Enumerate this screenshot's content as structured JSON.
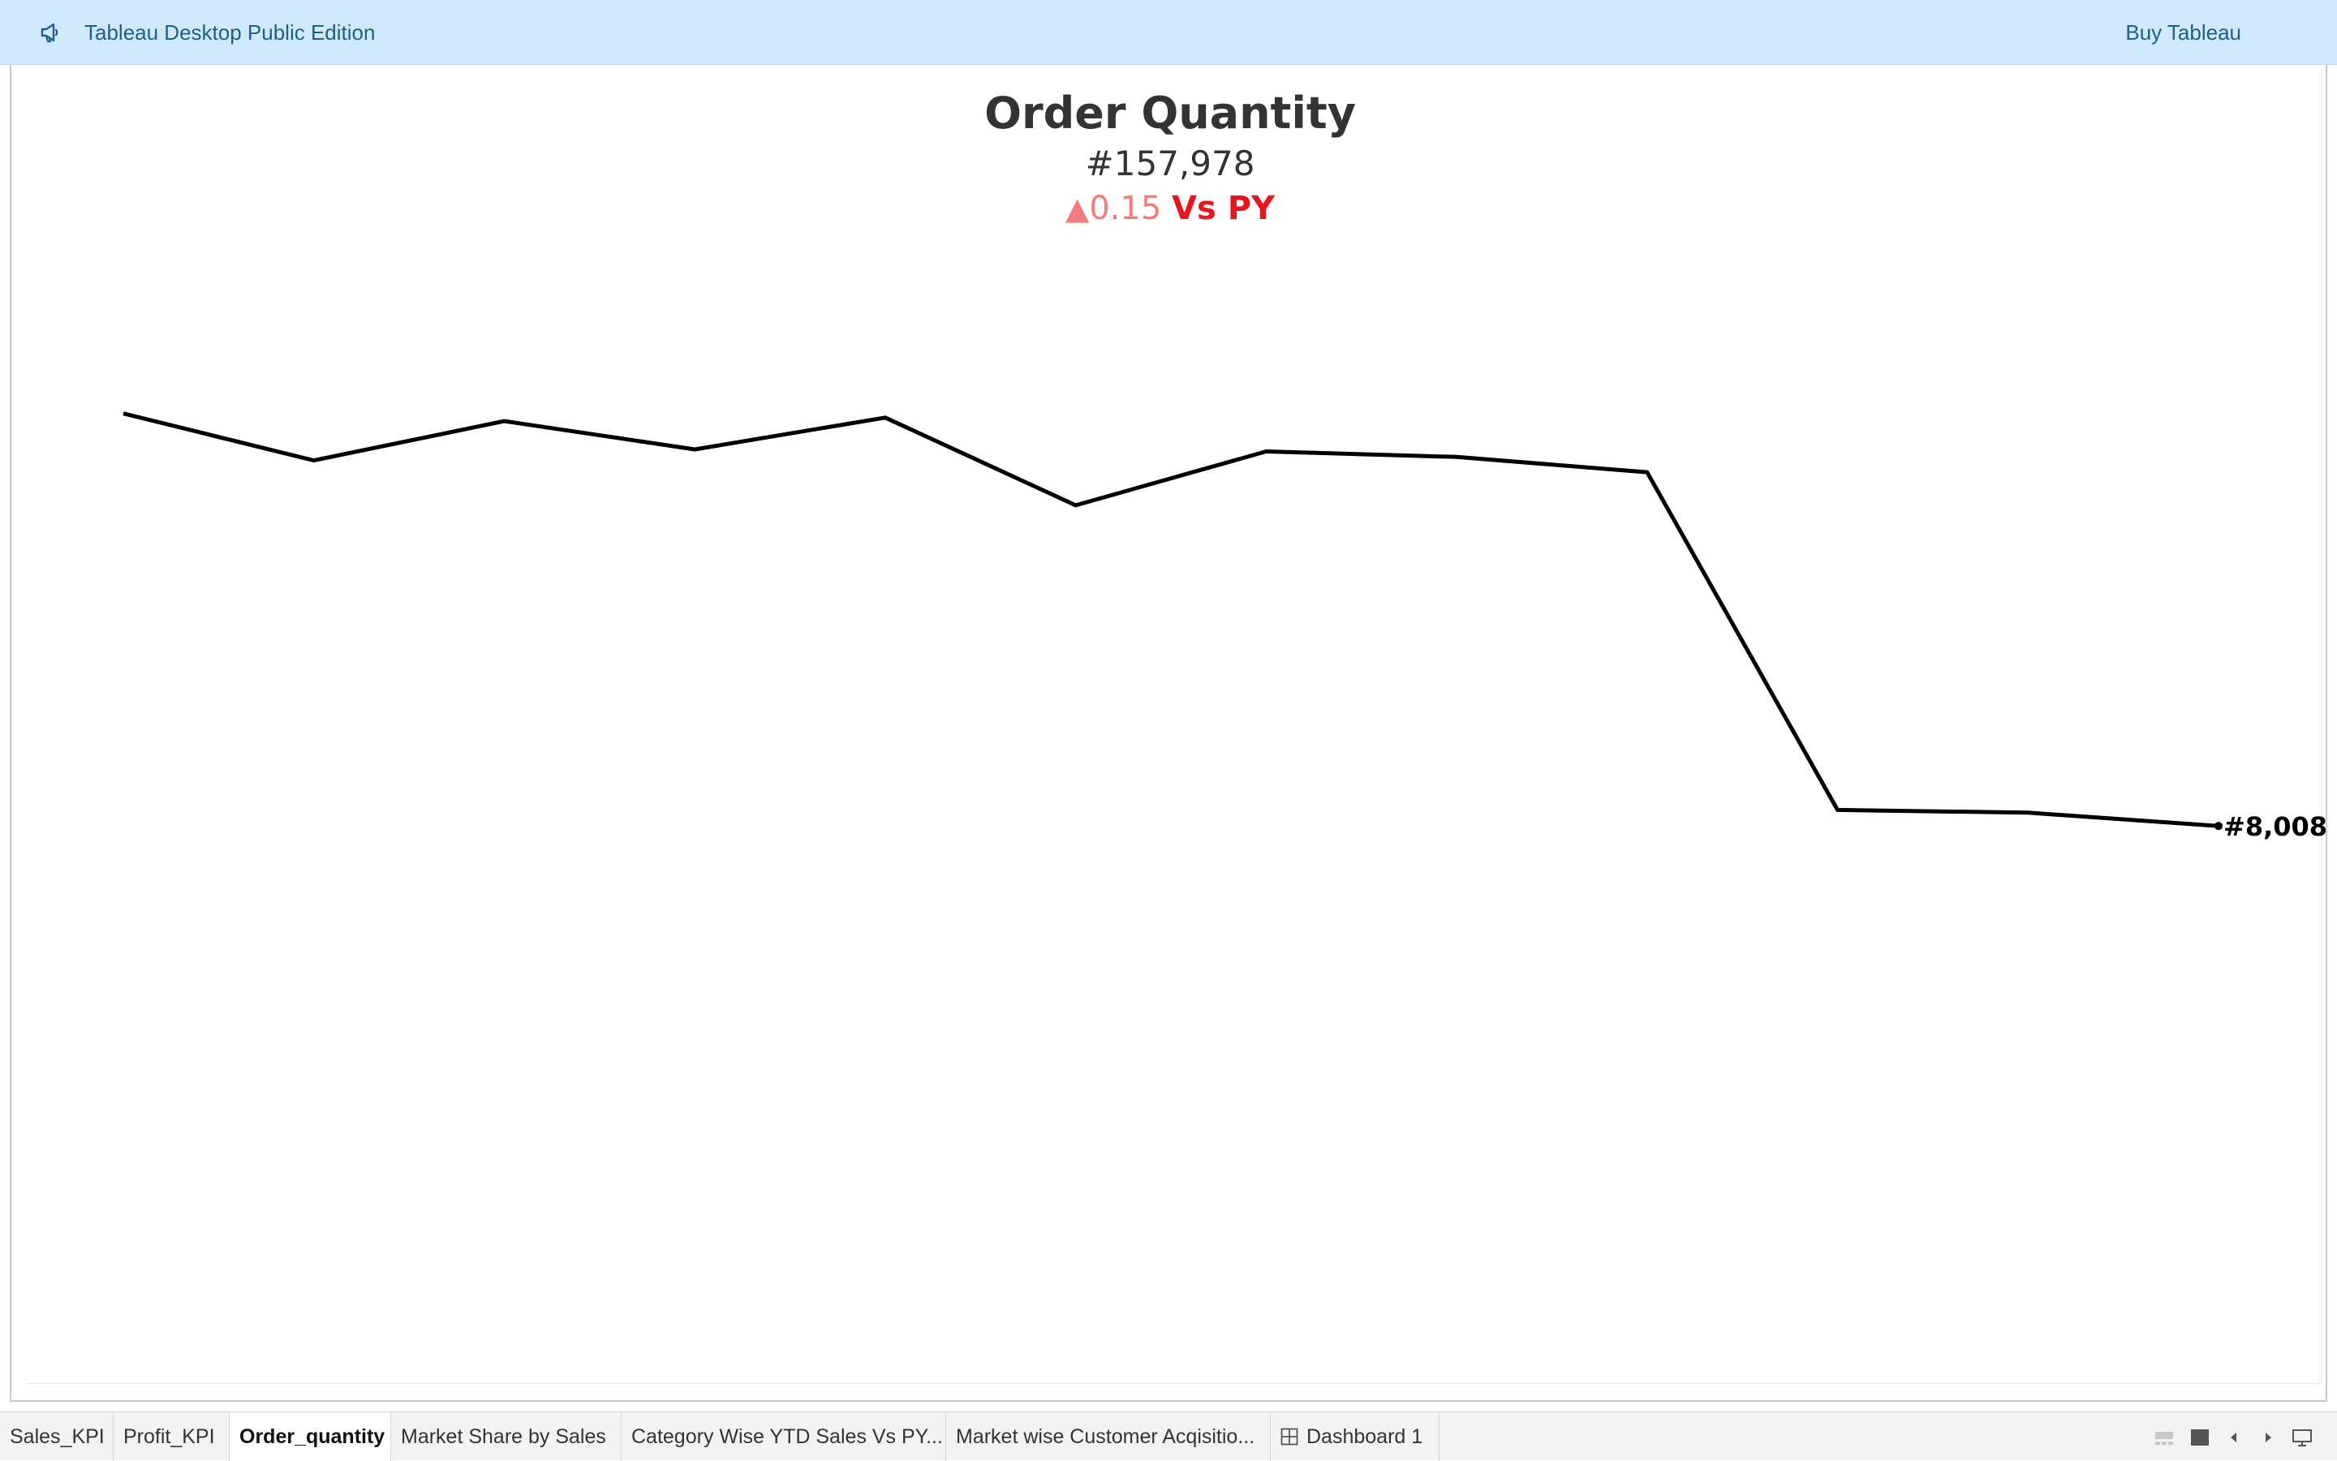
{
  "banner": {
    "icon": "megaphone-icon",
    "title": "Tableau Desktop Public Edition",
    "buy_label": "Buy Tableau",
    "background": "#cfe8fb",
    "text_color": "#1f5f86"
  },
  "sheet": {
    "title": "Order Quantity",
    "kpi_value": "#157,978",
    "change_symbol": "▲",
    "change_value": "0.15",
    "change_suffix": "Vs PY",
    "change_color": "#f27c7c",
    "suffix_color": "#e8141e"
  },
  "chart_data": {
    "type": "line",
    "title": "",
    "xlabel": "",
    "ylabel": "",
    "grid": false,
    "line_color": "#000000",
    "x": [
      1,
      2,
      3,
      4,
      5,
      6,
      7,
      8,
      9,
      10,
      11,
      12
    ],
    "series": [
      {
        "values": [
          13980,
          13300,
          13870,
          13460,
          13920,
          12650,
          13430,
          13350,
          13130,
          8240,
          8200,
          8008
        ]
      }
    ],
    "end_label": "#8,008",
    "ylim": [
      0,
      17500
    ]
  },
  "tabs": [
    {
      "label": "Sales_KPI",
      "active": false
    },
    {
      "label": "Profit_KPI",
      "active": false
    },
    {
      "label": "Order_quantity",
      "active": true
    },
    {
      "label": "Market Share by Sales",
      "active": false
    },
    {
      "label": "Category Wise YTD Sales Vs PY...",
      "active": false
    },
    {
      "label": "Market wise Customer Acqisitio...",
      "active": false
    },
    {
      "label": "Dashboard 1",
      "active": false,
      "icon": "dashboard-grid-icon"
    }
  ],
  "controls": [
    {
      "name": "show-filmstrip-icon"
    },
    {
      "name": "show-tabs-icon"
    },
    {
      "name": "previous-sheet-icon"
    },
    {
      "name": "next-sheet-icon"
    },
    {
      "name": "presentation-mode-icon"
    }
  ]
}
